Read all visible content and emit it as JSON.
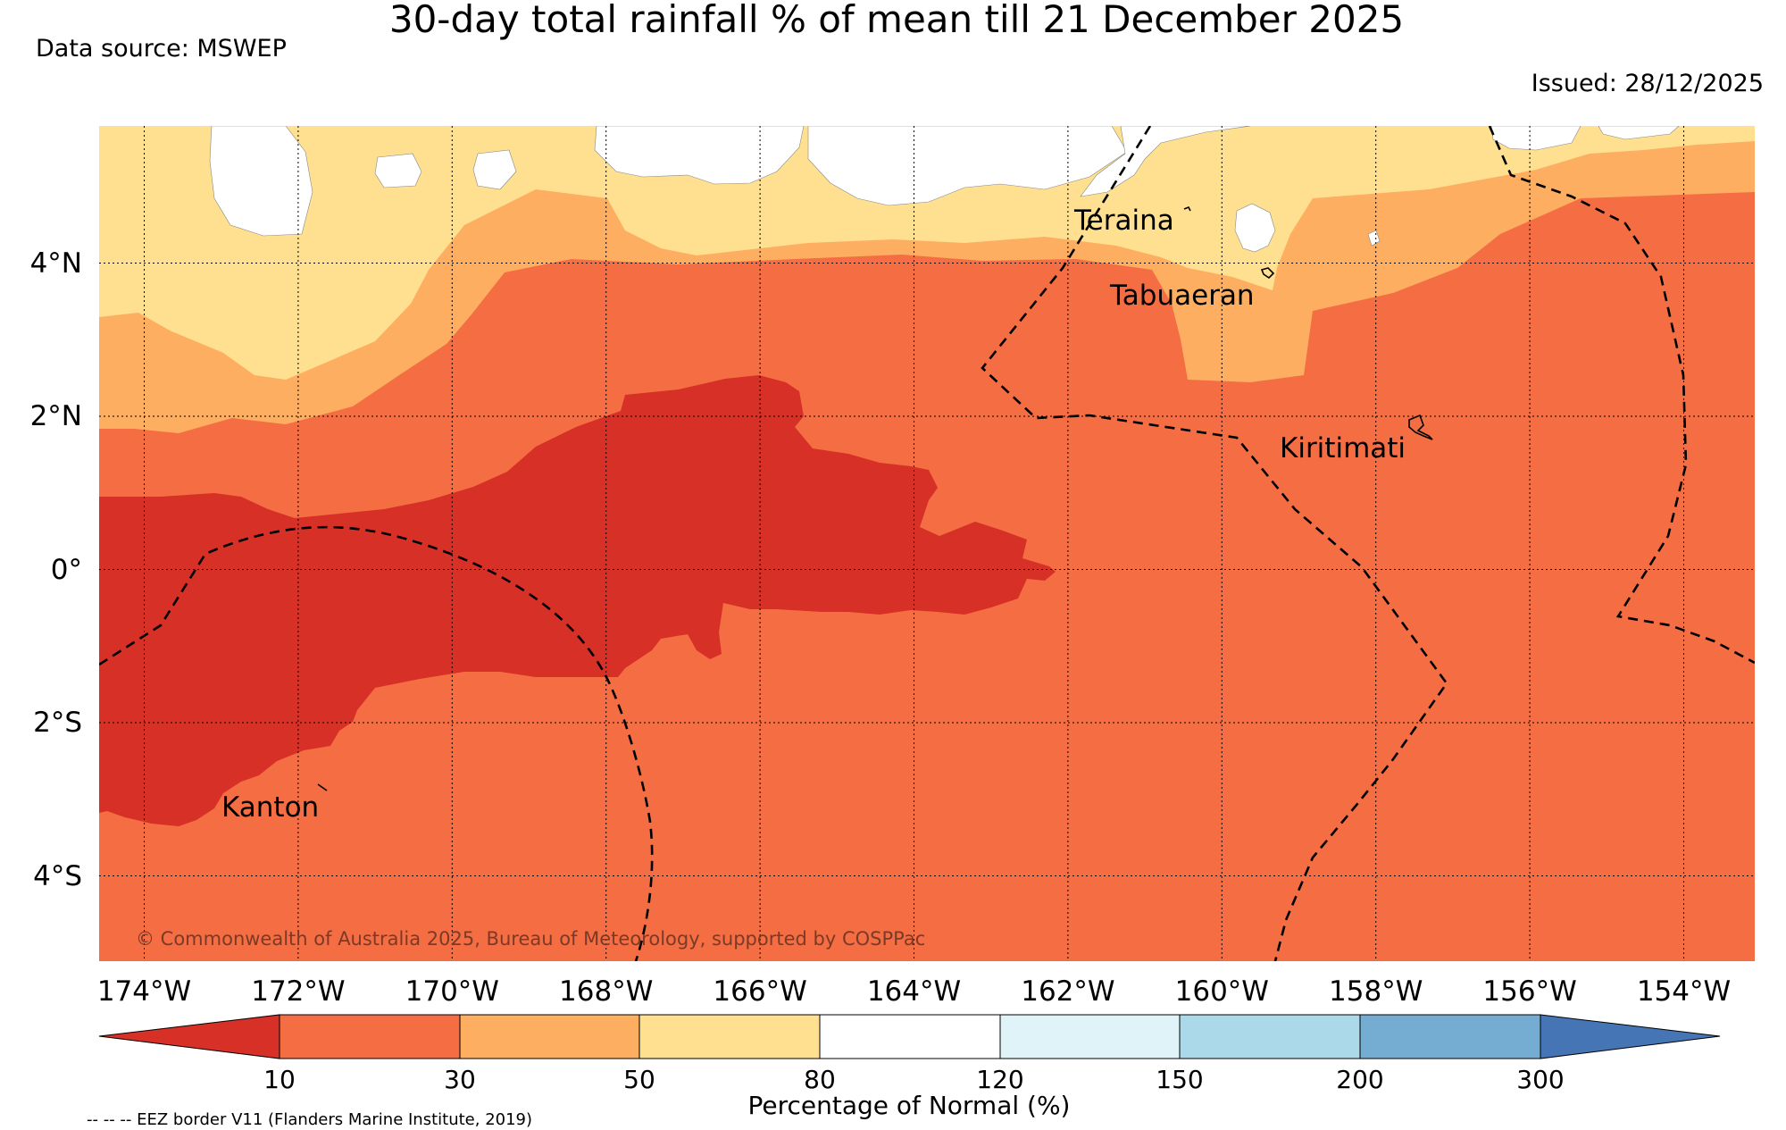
{
  "header": {
    "title": "30-day total rainfall % of mean till 21 December 2025",
    "source": "Data source: MSWEP",
    "issued": "Issued: 28/12/2025"
  },
  "map": {
    "lon_labels": [
      "174°W",
      "172°W",
      "170°W",
      "168°W",
      "166°W",
      "164°W",
      "162°W",
      "160°W",
      "158°W",
      "156°W",
      "154°W"
    ],
    "lat_labels": [
      "4°N",
      "2°N",
      "0°",
      "2°S",
      "4°S"
    ],
    "places": {
      "teraina": "Teraina",
      "tabuaeran": "Tabuaeran",
      "kiritimati": "Kiritimati",
      "kanton": "Kanton"
    },
    "copyright": "© Commonwealth of Australia 2025, Bureau of Meteorology, supported by COSPPac"
  },
  "colorbar": {
    "ticks": [
      "10",
      "30",
      "50",
      "80",
      "120",
      "150",
      "200",
      "300"
    ],
    "label": "Percentage of Normal (%)",
    "colors": {
      "below_10": "#d73027",
      "10_30": "#f46d43",
      "30_50": "#fdae61",
      "50_80": "#fee090",
      "80_120": "#ffffff",
      "120_150": "#e0f3f8",
      "150_200": "#abd9e9",
      "200_300": "#74add1",
      "above_300": "#4575b4"
    }
  },
  "footer": {
    "eez_note": "-- -- -- EEZ border V11 (Flanders Marine Institute, 2019)"
  }
}
